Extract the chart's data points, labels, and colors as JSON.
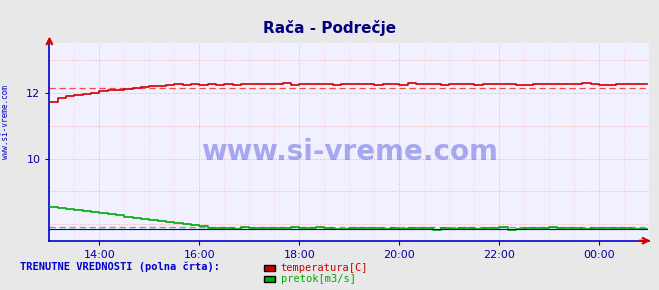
{
  "title": "Rača - Podrečje",
  "title_color": "#000080",
  "bg_color": "#e8e8e8",
  "plot_bg_color": "#f0f0ff",
  "watermark_text": "www.si-vreme.com",
  "watermark_color": "#0000cc",
  "watermark_alpha": 0.3,
  "left_label": "www.si-vreme.com",
  "left_label_color": "#0000cc",
  "xlabel_color": "#0000aa",
  "ylabel_color": "#0000aa",
  "grid_color": "#ffaaaa",
  "grid_color_minor": "#ffcccc",
  "axis_color": "#0000cc",
  "xlim": [
    0,
    288
  ],
  "ylim": [
    7.5,
    13.5
  ],
  "yticks": [
    10,
    12
  ],
  "xtick_labels": [
    "14:00",
    "16:00",
    "18:00",
    "20:00",
    "22:00",
    "00:00"
  ],
  "xtick_positions": [
    24,
    72,
    120,
    168,
    216,
    264
  ],
  "temp_color": "#cc0000",
  "temp_dashed_color": "#ff4444",
  "flow_color": "#00aa00",
  "flow_dashed_color": "#44cc44",
  "height_color": "#0000cc",
  "height_dashed_color": "#8888ff",
  "legend_label1": "temperatura[C]",
  "legend_label2": "pretok[m3/s]",
  "legend_color1": "#cc0000",
  "legend_color2": "#00aa00",
  "bottom_label": "TRENUTNE VREDNOSTI (polna črta):",
  "bottom_label_color": "#0000cc",
  "n_points": 288,
  "temp_start": 11.65,
  "temp_rise_end": 60,
  "temp_plateau": 12.25,
  "temp_avg": 12.15,
  "flow_start": 8.55,
  "flow_drop_end": 80,
  "flow_plateau": 7.88,
  "flow_avg": 7.92,
  "height_base": 7.85,
  "height_avg": 7.86
}
